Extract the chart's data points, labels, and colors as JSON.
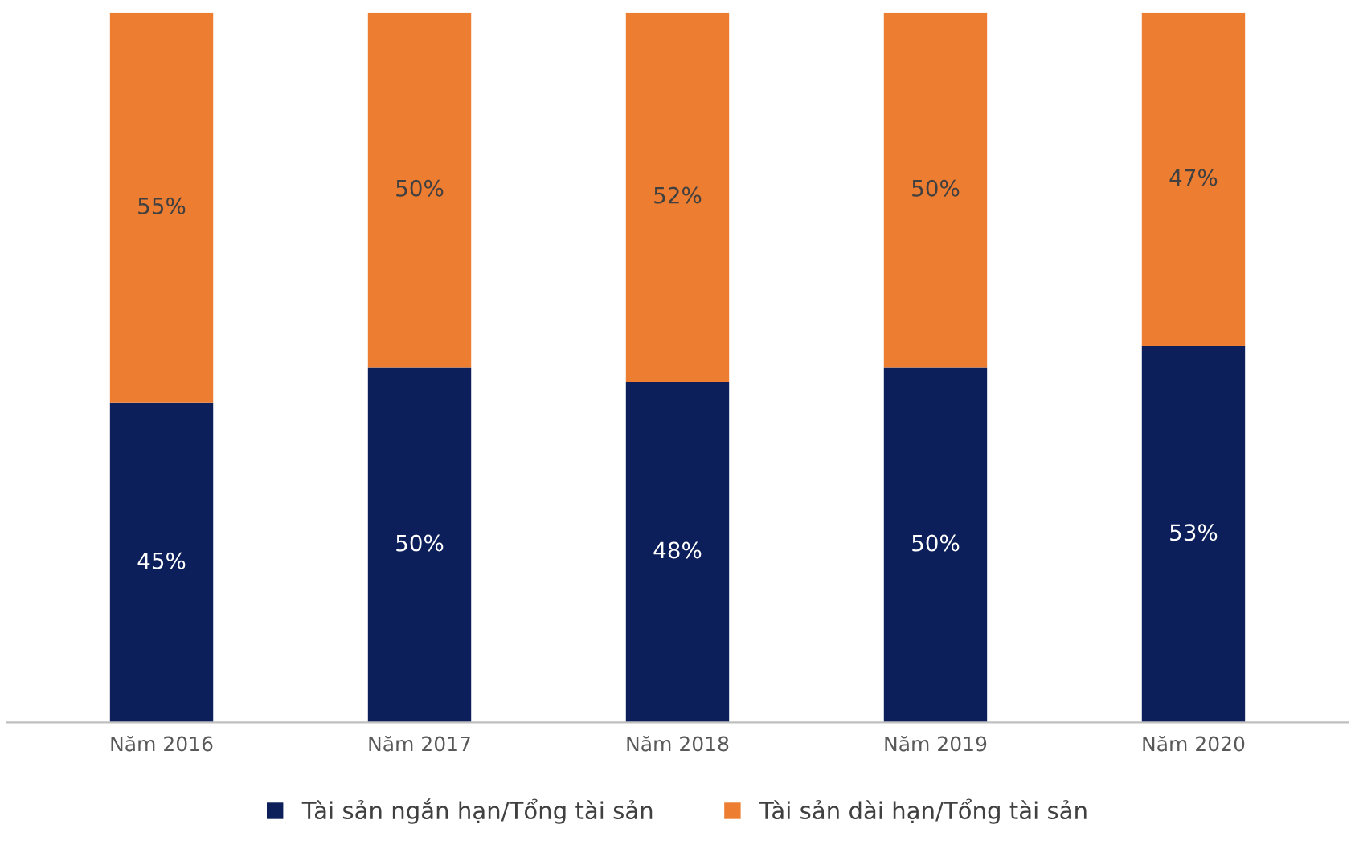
{
  "chart_data": {
    "type": "bar",
    "stacked": true,
    "categories": [
      "Năm 2016",
      "Năm 2017",
      "Năm 2018",
      "Năm 2019",
      "Năm 2020"
    ],
    "series": [
      {
        "name": "Tài sản ngắn hạn/Tổng tài sản",
        "color": "#0c1f5b",
        "values": [
          45,
          50,
          48,
          50,
          53
        ],
        "value_labels": [
          "45%",
          "50%",
          "48%",
          "50%",
          "53%"
        ]
      },
      {
        "name": "Tài sản dài hạn/Tổng tài sản",
        "color": "#ed7d31",
        "values": [
          55,
          50,
          52,
          50,
          47
        ],
        "value_labels": [
          "55%",
          "50%",
          "52%",
          "50%",
          "47%"
        ]
      }
    ],
    "legend": "bottom",
    "grid": false,
    "tick_labels": "x"
  }
}
